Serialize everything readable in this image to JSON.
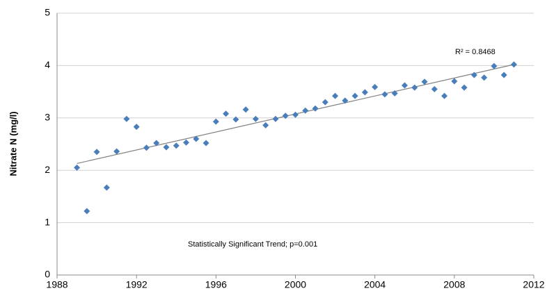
{
  "chart_data": {
    "type": "scatter",
    "y_label": "Nitrate N (mg/l)",
    "annotations": [
      "R² = 0.8468",
      "Statistically Significant Trend; p=0.001"
    ],
    "series": [
      {
        "color": "#4a7ebb",
        "x": [
          1989,
          1989.5,
          1990,
          1990.5,
          1991,
          1991.5,
          1992,
          1992.5,
          1993,
          1993.5,
          1994,
          1994.5,
          1995,
          1995.5,
          1996,
          1996.5,
          1997,
          1997.5,
          1998,
          1998.5,
          1999,
          1999.5,
          2000,
          2000.5,
          2001,
          2001.5,
          2002,
          2002.5,
          2003,
          2003.5,
          2004,
          2004.5,
          2005,
          2005.5,
          2006,
          2006.5,
          2007,
          2007.5,
          2008,
          2008.5,
          2009,
          2009.5,
          2010,
          2010.5,
          2011
        ],
        "values": [
          2.05,
          1.22,
          2.35,
          1.67,
          2.36,
          2.98,
          2.83,
          2.43,
          2.52,
          2.44,
          2.47,
          2.53,
          2.6,
          2.52,
          2.93,
          3.08,
          2.97,
          3.16,
          2.98,
          2.86,
          2.98,
          3.04,
          3.06,
          3.14,
          3.18,
          3.3,
          3.42,
          3.33,
          3.42,
          3.49,
          3.59,
          3.45,
          3.47,
          3.62,
          3.58,
          3.69,
          3.55,
          3.42,
          3.7,
          3.58,
          3.82,
          3.77,
          3.99,
          3.82,
          4.02
        ]
      }
    ],
    "trendline": {
      "color": "#808080",
      "x": [
        1989,
        2011
      ],
      "values": [
        2.13,
        4.02
      ]
    },
    "xlim": [
      1988,
      2012
    ],
    "xticks": [
      1988,
      1992,
      1996,
      2000,
      2004,
      2008,
      2012
    ],
    "ylim": [
      0,
      5
    ],
    "yticks": [
      0,
      1,
      2,
      3,
      4,
      5
    ],
    "grid": true
  }
}
